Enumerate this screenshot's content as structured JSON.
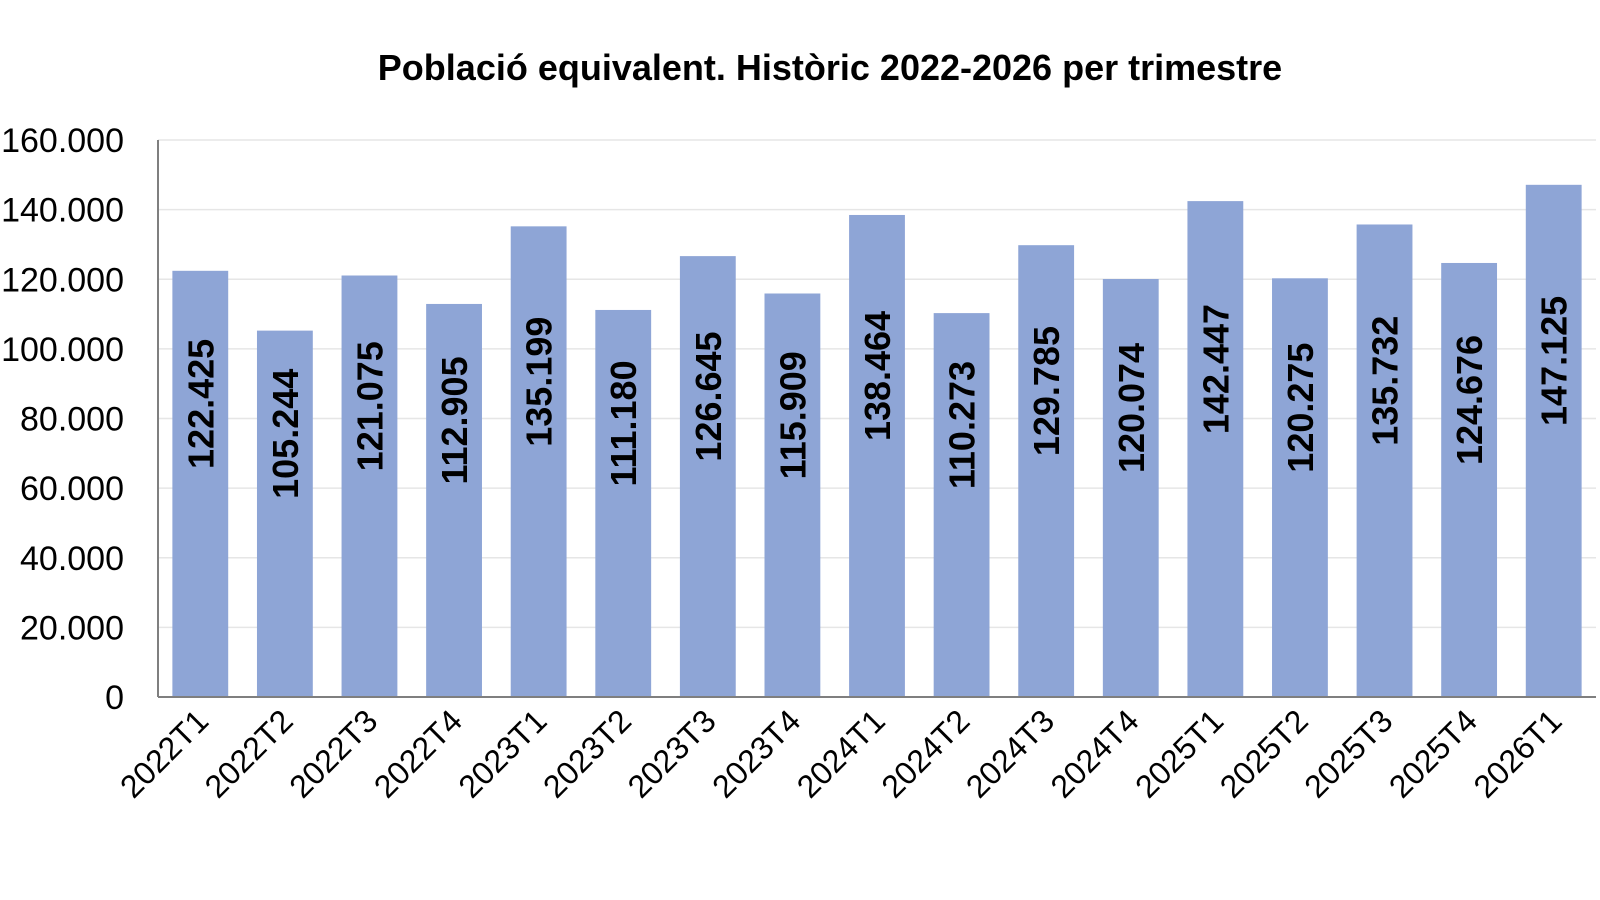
{
  "chart_data": {
    "type": "bar",
    "title": "Població equivalent. Històric  2022-2026  per trimestre",
    "xlabel": "",
    "ylabel": "",
    "categories": [
      "2022T1",
      "2022T2",
      "2022T3",
      "2022T4",
      "2023T1",
      "2023T2",
      "2023T3",
      "2023T4",
      "2024T1",
      "2024T2",
      "2024T3",
      "2024T4",
      "2025T1",
      "2025T2",
      "2025T3",
      "2025T4",
      "2026T1"
    ],
    "values": [
      122425,
      105244,
      121075,
      112905,
      135199,
      111180,
      126645,
      115909,
      138464,
      110273,
      129785,
      120074,
      142447,
      120275,
      135732,
      124676,
      147125
    ],
    "value_labels": [
      "122.425",
      "105.244",
      "121.075",
      "112.905",
      "135.199",
      "111.180",
      "126.645",
      "115.909",
      "138.464",
      "110.273",
      "129.785",
      "120.074",
      "142.447",
      "120.275",
      "135.732",
      "124.676",
      "147.125"
    ],
    "ylim": [
      0,
      160000
    ],
    "yticks": [
      0,
      20000,
      40000,
      60000,
      80000,
      100000,
      120000,
      140000,
      160000
    ],
    "ytick_labels": [
      "0",
      "20.000",
      "40.000",
      "60.000",
      "80.000",
      "100.000",
      "120.000",
      "140.000",
      "160.000"
    ],
    "grid": true,
    "legend": "none",
    "bar_color": "#8ea5d6"
  }
}
